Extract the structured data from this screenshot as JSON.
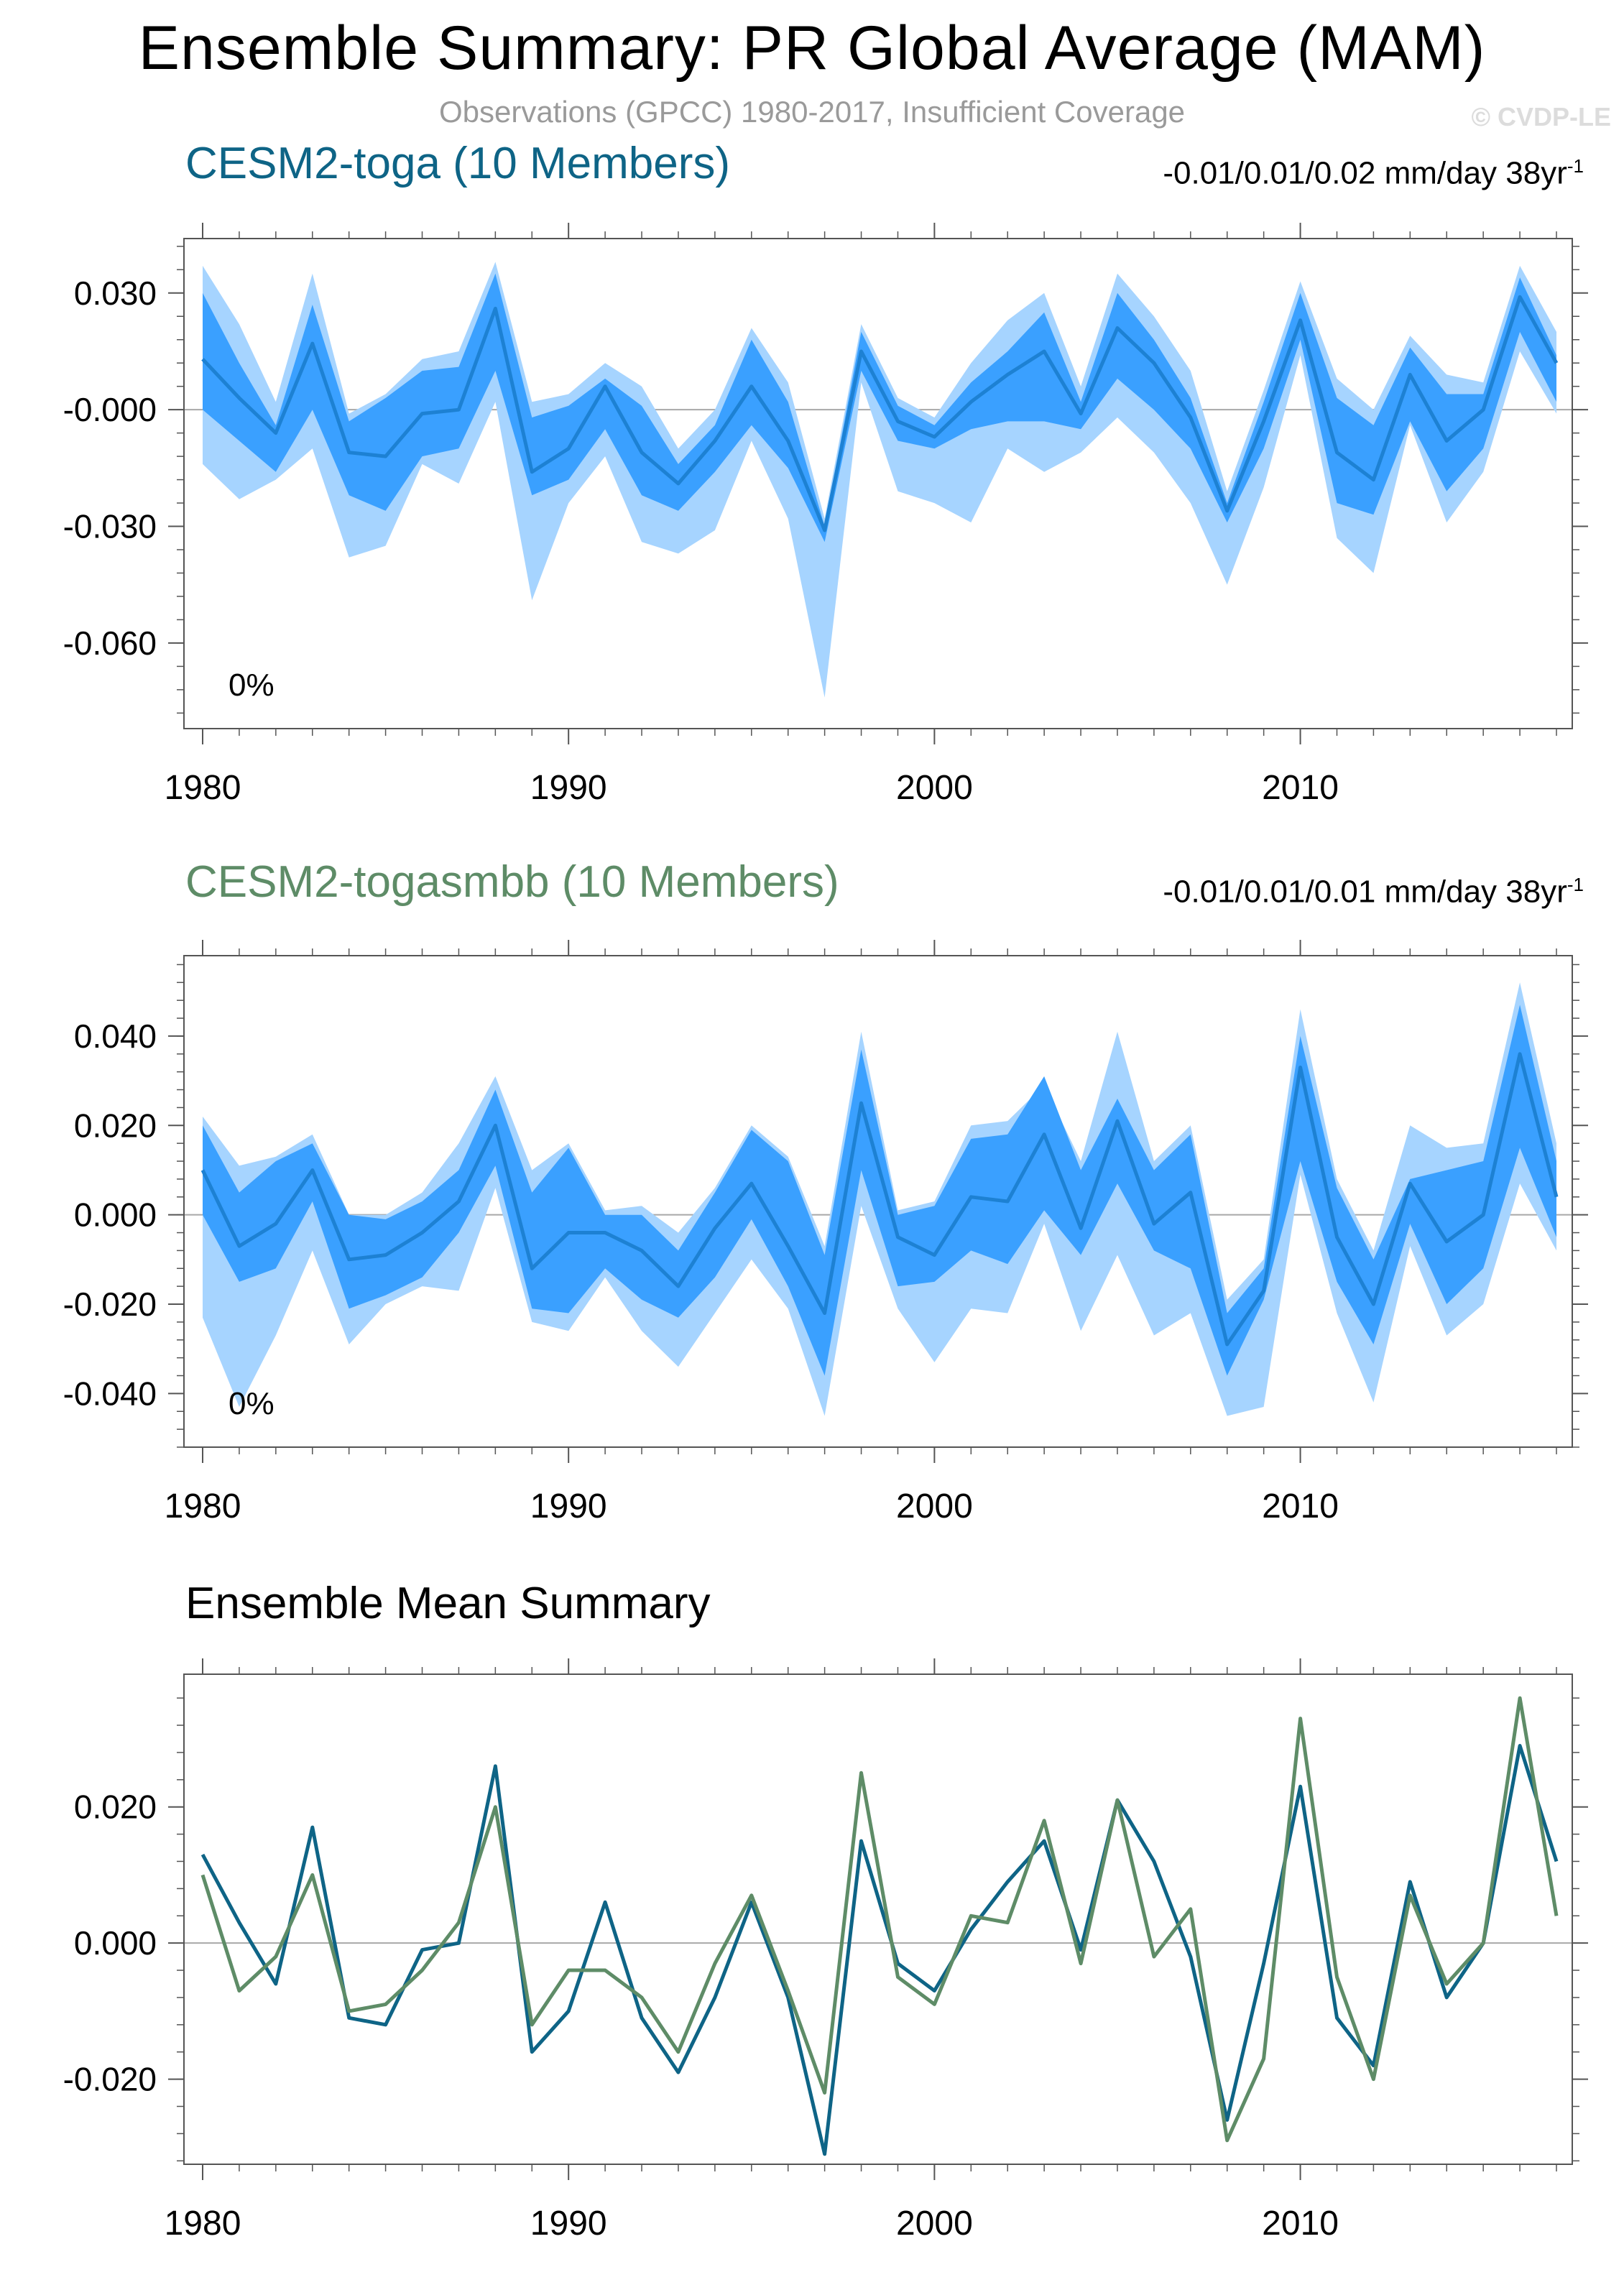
{
  "title": "Ensemble Summary: PR Global Average (MAM)",
  "subtitle": "Observations (GPCC) 1980-2017, Insufficient Coverage",
  "copyright": "© CVDP-LE",
  "colors": {
    "toga": "#0e6486",
    "togasmbb": "#5e8c67",
    "band_outer": "#a6d4ff",
    "band_inner": "#3aa0ff",
    "mean_line": "#1d81d3",
    "frame": "#555555"
  },
  "chart_data": [
    {
      "type": "area",
      "title": "CESM2-toga (10 Members)",
      "stats_text": "-0.01/0.01/0.02 mm/day 38yr",
      "stats_sup": "-1",
      "pct_label": "0%",
      "x": [
        1980,
        1981,
        1982,
        1983,
        1984,
        1985,
        1986,
        1987,
        1988,
        1989,
        1990,
        1991,
        1992,
        1993,
        1994,
        1995,
        1996,
        1997,
        1998,
        1999,
        2000,
        2001,
        2002,
        2003,
        2004,
        2005,
        2006,
        2007,
        2008,
        2009,
        2010,
        2011,
        2012,
        2013,
        2014,
        2015,
        2016,
        2017
      ],
      "xticks": [
        1980,
        1990,
        2000,
        2010
      ],
      "xlim": [
        1980,
        2017
      ],
      "ylim": [
        -0.082,
        0.044
      ],
      "yticks": [
        0.03,
        0.0,
        -0.03,
        -0.06
      ],
      "ytick_labels": [
        "0.030",
        "-0.000",
        "-0.030",
        "-0.060"
      ],
      "series": [
        {
          "name": "max",
          "values": [
            0.037,
            0.022,
            0.002,
            0.035,
            -0.001,
            0.004,
            0.013,
            0.015,
            0.038,
            0.002,
            0.004,
            0.012,
            0.006,
            -0.01,
            0.0,
            0.021,
            0.007,
            -0.028,
            0.022,
            0.003,
            -0.002,
            0.012,
            0.023,
            0.03,
            0.006,
            0.035,
            0.024,
            0.01,
            -0.021,
            0.005,
            0.033,
            0.008,
            0.0,
            0.019,
            0.009,
            0.007,
            0.037,
            0.02
          ]
        },
        {
          "name": "p90",
          "values": [
            0.03,
            0.012,
            -0.004,
            0.027,
            -0.003,
            0.003,
            0.01,
            0.011,
            0.035,
            -0.002,
            0.001,
            0.008,
            0.001,
            -0.014,
            -0.004,
            0.018,
            0.002,
            -0.03,
            0.02,
            0.001,
            -0.004,
            0.007,
            0.015,
            0.025,
            0.002,
            0.03,
            0.018,
            0.003,
            -0.024,
            0.002,
            0.03,
            0.003,
            -0.004,
            0.016,
            0.004,
            0.004,
            0.034,
            0.014
          ]
        },
        {
          "name": "mean",
          "values": [
            0.013,
            0.003,
            -0.006,
            0.017,
            -0.011,
            -0.012,
            -0.001,
            0.0,
            0.026,
            -0.016,
            -0.01,
            0.006,
            -0.011,
            -0.019,
            -0.008,
            0.006,
            -0.008,
            -0.031,
            0.015,
            -0.003,
            -0.007,
            0.002,
            0.009,
            0.015,
            -0.001,
            0.021,
            0.012,
            -0.002,
            -0.026,
            -0.003,
            0.023,
            -0.011,
            -0.018,
            0.009,
            -0.008,
            0.0,
            0.029,
            0.012
          ]
        },
        {
          "name": "p10",
          "values": [
            0.0,
            -0.008,
            -0.016,
            0.0,
            -0.022,
            -0.026,
            -0.012,
            -0.01,
            0.01,
            -0.022,
            -0.018,
            -0.005,
            -0.022,
            -0.026,
            -0.016,
            -0.004,
            -0.015,
            -0.034,
            0.01,
            -0.008,
            -0.01,
            -0.005,
            -0.003,
            -0.003,
            -0.005,
            0.008,
            0.0,
            -0.01,
            -0.029,
            -0.01,
            0.018,
            -0.024,
            -0.027,
            -0.003,
            -0.021,
            -0.01,
            0.02,
            0.002
          ]
        },
        {
          "name": "min",
          "values": [
            -0.014,
            -0.023,
            -0.018,
            -0.01,
            -0.038,
            -0.035,
            -0.014,
            -0.019,
            0.002,
            -0.049,
            -0.024,
            -0.012,
            -0.034,
            -0.037,
            -0.031,
            -0.008,
            -0.028,
            -0.074,
            0.007,
            -0.021,
            -0.024,
            -0.029,
            -0.01,
            -0.016,
            -0.011,
            -0.002,
            -0.011,
            -0.024,
            -0.045,
            -0.02,
            0.014,
            -0.033,
            -0.042,
            -0.004,
            -0.029,
            -0.016,
            0.015,
            -0.001
          ]
        }
      ]
    },
    {
      "type": "area",
      "title": "CESM2-togasmbb (10 Members)",
      "stats_text": "-0.01/0.01/0.01 mm/day 38yr",
      "stats_sup": "-1",
      "pct_label": "0%",
      "x": [
        1980,
        1981,
        1982,
        1983,
        1984,
        1985,
        1986,
        1987,
        1988,
        1989,
        1990,
        1991,
        1992,
        1993,
        1994,
        1995,
        1996,
        1997,
        1998,
        1999,
        2000,
        2001,
        2002,
        2003,
        2004,
        2005,
        2006,
        2007,
        2008,
        2009,
        2010,
        2011,
        2012,
        2013,
        2014,
        2015,
        2016,
        2017
      ],
      "xticks": [
        1980,
        1990,
        2000,
        2010
      ],
      "xlim": [
        1980,
        2017
      ],
      "ylim": [
        -0.052,
        0.058
      ],
      "yticks": [
        0.04,
        0.02,
        0.0,
        -0.02,
        -0.04
      ],
      "ytick_labels": [
        "0.040",
        "0.020",
        "0.000",
        "-0.020",
        "-0.040"
      ],
      "series": [
        {
          "name": "max",
          "values": [
            0.022,
            0.011,
            0.013,
            0.018,
            0.0,
            0.0,
            0.005,
            0.016,
            0.031,
            0.01,
            0.016,
            0.001,
            0.002,
            -0.004,
            0.006,
            0.02,
            0.013,
            -0.007,
            0.041,
            0.001,
            0.003,
            0.02,
            0.021,
            0.029,
            0.012,
            0.041,
            0.012,
            0.02,
            -0.019,
            -0.01,
            0.046,
            0.008,
            -0.008,
            0.02,
            0.015,
            0.016,
            0.052,
            0.016
          ]
        },
        {
          "name": "p90",
          "values": [
            0.02,
            0.005,
            0.012,
            0.016,
            0.0,
            -0.001,
            0.003,
            0.01,
            0.028,
            0.005,
            0.015,
            0.0,
            0.0,
            -0.008,
            0.005,
            0.019,
            0.012,
            -0.009,
            0.037,
            0.0,
            0.002,
            0.017,
            0.018,
            0.031,
            0.01,
            0.026,
            0.01,
            0.018,
            -0.022,
            -0.012,
            0.04,
            0.006,
            -0.01,
            0.008,
            0.01,
            0.012,
            0.047,
            0.012
          ]
        },
        {
          "name": "mean",
          "values": [
            0.01,
            -0.007,
            -0.002,
            0.01,
            -0.01,
            -0.009,
            -0.004,
            0.003,
            0.02,
            -0.012,
            -0.004,
            -0.004,
            -0.008,
            -0.016,
            -0.003,
            0.007,
            -0.007,
            -0.022,
            0.025,
            -0.005,
            -0.009,
            0.004,
            0.003,
            0.018,
            -0.003,
            0.021,
            -0.002,
            0.005,
            -0.029,
            -0.017,
            0.033,
            -0.005,
            -0.02,
            0.007,
            -0.006,
            0.0,
            0.036,
            0.004
          ]
        },
        {
          "name": "p10",
          "values": [
            0.0,
            -0.015,
            -0.012,
            0.003,
            -0.021,
            -0.018,
            -0.014,
            -0.004,
            0.011,
            -0.021,
            -0.022,
            -0.012,
            -0.019,
            -0.023,
            -0.014,
            -0.001,
            -0.016,
            -0.036,
            0.01,
            -0.016,
            -0.015,
            -0.008,
            -0.011,
            0.001,
            -0.009,
            0.007,
            -0.008,
            -0.012,
            -0.036,
            -0.019,
            0.012,
            -0.015,
            -0.029,
            -0.002,
            -0.02,
            -0.012,
            0.015,
            -0.005
          ]
        },
        {
          "name": "min",
          "values": [
            -0.023,
            -0.043,
            -0.027,
            -0.008,
            -0.029,
            -0.02,
            -0.016,
            -0.017,
            0.006,
            -0.024,
            -0.026,
            -0.014,
            -0.026,
            -0.034,
            -0.022,
            -0.01,
            -0.021,
            -0.045,
            0.002,
            -0.021,
            -0.033,
            -0.021,
            -0.022,
            -0.002,
            -0.026,
            -0.009,
            -0.027,
            -0.022,
            -0.045,
            -0.043,
            0.009,
            -0.022,
            -0.042,
            -0.007,
            -0.027,
            -0.02,
            0.007,
            -0.008
          ]
        }
      ]
    },
    {
      "type": "line",
      "title": "Ensemble Mean Summary",
      "x": [
        1980,
        1981,
        1982,
        1983,
        1984,
        1985,
        1986,
        1987,
        1988,
        1989,
        1990,
        1991,
        1992,
        1993,
        1994,
        1995,
        1996,
        1997,
        1998,
        1999,
        2000,
        2001,
        2002,
        2003,
        2004,
        2005,
        2006,
        2007,
        2008,
        2009,
        2010,
        2011,
        2012,
        2013,
        2014,
        2015,
        2016,
        2017
      ],
      "xticks": [
        1980,
        1990,
        2000,
        2010
      ],
      "xlim": [
        1980,
        2017
      ],
      "ylim": [
        -0.0325,
        0.0395
      ],
      "yticks": [
        0.02,
        0.0,
        -0.02
      ],
      "ytick_labels": [
        "0.020",
        "0.000",
        "-0.020"
      ],
      "series": [
        {
          "name": "CESM2-toga",
          "values": [
            0.013,
            0.003,
            -0.006,
            0.017,
            -0.011,
            -0.012,
            -0.001,
            0.0,
            0.026,
            -0.016,
            -0.01,
            0.006,
            -0.011,
            -0.019,
            -0.008,
            0.006,
            -0.008,
            -0.031,
            0.015,
            -0.003,
            -0.007,
            0.002,
            0.009,
            0.015,
            -0.001,
            0.021,
            0.012,
            -0.002,
            -0.026,
            -0.003,
            0.023,
            -0.011,
            -0.018,
            0.009,
            -0.008,
            0.0,
            0.029,
            0.012
          ]
        },
        {
          "name": "CESM2-togasmbb",
          "values": [
            0.01,
            -0.007,
            -0.002,
            0.01,
            -0.01,
            -0.009,
            -0.004,
            0.003,
            0.02,
            -0.012,
            -0.004,
            -0.004,
            -0.008,
            -0.016,
            -0.003,
            0.007,
            -0.007,
            -0.022,
            0.025,
            -0.005,
            -0.009,
            0.004,
            0.003,
            0.018,
            -0.003,
            0.021,
            -0.002,
            0.005,
            -0.029,
            -0.017,
            0.033,
            -0.005,
            -0.02,
            0.007,
            -0.006,
            0.0,
            0.036,
            0.004
          ]
        }
      ]
    }
  ]
}
